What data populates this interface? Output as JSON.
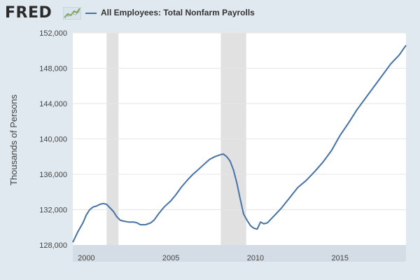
{
  "header": {
    "logo_text": "FRED",
    "logo_icon": "line-chart-icon",
    "series_title": "All Employees: Total Nonfarm Payrolls"
  },
  "colors": {
    "line": "#4572a7",
    "recession": "#e1e1e1",
    "grid": "#e6e6e6",
    "background": "#e1e9f0",
    "plot_background": "#ffffff"
  },
  "chart_data": {
    "type": "line",
    "title": "",
    "xlabel": "",
    "ylabel": "Thousands of Persons",
    "xlim": [
      1999.2,
      2018.9
    ],
    "ylim": [
      128000,
      152000
    ],
    "grid": true,
    "legend": "top-left",
    "x_ticks": [
      2000,
      2005,
      2010,
      2015
    ],
    "x_tick_labels": [
      "2000",
      "2005",
      "2010",
      "2015"
    ],
    "y_ticks": [
      128000,
      132000,
      136000,
      140000,
      144000,
      148000,
      152000
    ],
    "y_tick_labels": [
      "128,000",
      "132,000",
      "136,000",
      "140,000",
      "144,000",
      "148,000",
      "152,000"
    ],
    "recessions": [
      [
        2001.2,
        2001.9
      ],
      [
        2007.95,
        2009.45
      ]
    ],
    "series": [
      {
        "name": "All Employees: Total Nonfarm Payrolls",
        "x": [
          1999.2,
          1999.5,
          1999.8,
          2000.0,
          2000.2,
          2000.4,
          2000.6,
          2000.8,
          2001.0,
          2001.2,
          2001.4,
          2001.6,
          2001.8,
          2002.0,
          2002.2,
          2002.5,
          2002.8,
          2003.0,
          2003.2,
          2003.5,
          2003.8,
          2004.0,
          2004.3,
          2004.6,
          2005.0,
          2005.3,
          2005.6,
          2006.0,
          2006.3,
          2006.6,
          2007.0,
          2007.3,
          2007.6,
          2007.9,
          2008.1,
          2008.3,
          2008.5,
          2008.7,
          2008.9,
          2009.1,
          2009.3,
          2009.5,
          2009.7,
          2009.9,
          2010.1,
          2010.3,
          2010.5,
          2010.7,
          2011.0,
          2011.5,
          2012.0,
          2012.5,
          2013.0,
          2013.5,
          2014.0,
          2014.5,
          2015.0,
          2015.5,
          2016.0,
          2016.5,
          2017.0,
          2017.5,
          2018.0,
          2018.5,
          2018.9
        ],
        "values": [
          128300,
          129500,
          130500,
          131400,
          132000,
          132300,
          132400,
          132600,
          132700,
          132600,
          132200,
          131800,
          131200,
          130800,
          130700,
          130600,
          130600,
          130500,
          130300,
          130300,
          130500,
          130800,
          131600,
          132300,
          133000,
          133700,
          134500,
          135400,
          136000,
          136500,
          137200,
          137700,
          138000,
          138200,
          138300,
          138000,
          137500,
          136500,
          135000,
          133200,
          131500,
          130800,
          130200,
          129900,
          129800,
          130600,
          130400,
          130500,
          131100,
          132100,
          133300,
          134500,
          135300,
          136300,
          137400,
          138700,
          140400,
          141800,
          143300,
          144600,
          145900,
          147200,
          148500,
          149500,
          150600
        ]
      }
    ]
  }
}
